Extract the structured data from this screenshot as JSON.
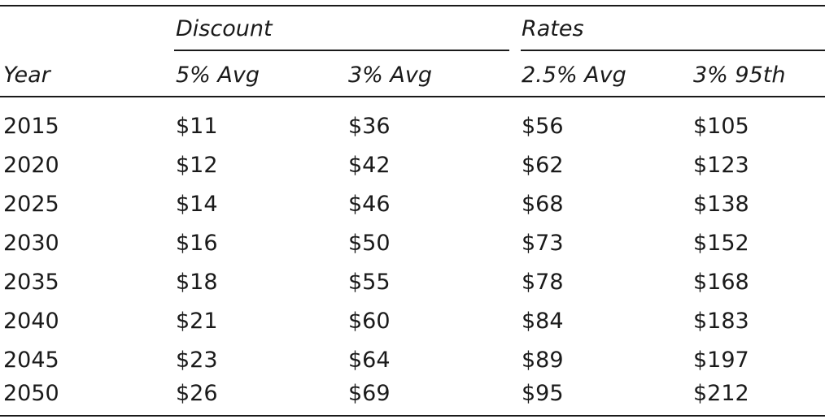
{
  "table": {
    "group_headers": [
      "Discount",
      "Rates"
    ],
    "columns": [
      "Year",
      "5% Avg",
      "3% Avg",
      "2.5% Avg",
      "3% 95th"
    ],
    "rows": [
      [
        "2015",
        "$11",
        "$36",
        "$56",
        "$105"
      ],
      [
        "2020",
        "$12",
        "$42",
        "$62",
        "$123"
      ],
      [
        "2025",
        "$14",
        "$46",
        "$68",
        "$138"
      ],
      [
        "2030",
        "$16",
        "$50",
        "$73",
        "$152"
      ],
      [
        "2035",
        "$18",
        "$55",
        "$78",
        "$168"
      ],
      [
        "2040",
        "$21",
        "$60",
        "$84",
        "$183"
      ],
      [
        "2045",
        "$23",
        "$64",
        "$89",
        "$197"
      ],
      [
        "2050",
        "$26",
        "$69",
        "$95",
        "$212"
      ]
    ]
  }
}
